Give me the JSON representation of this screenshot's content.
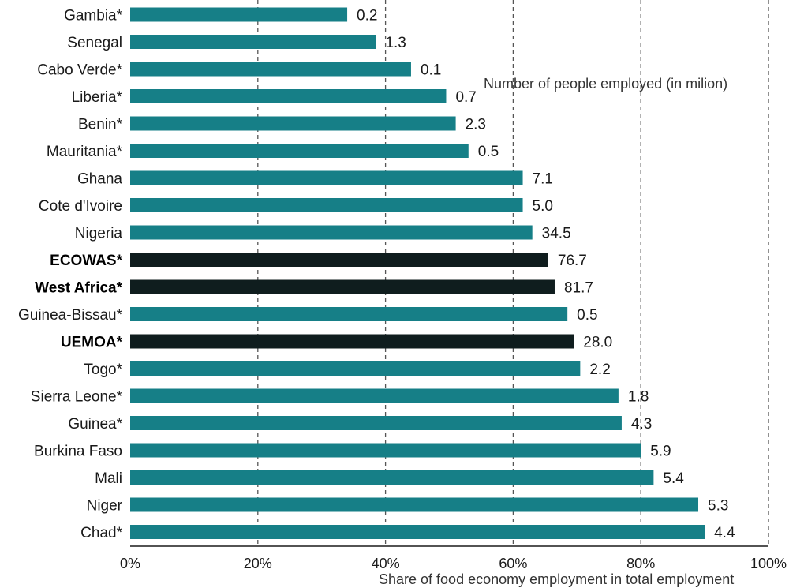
{
  "chart_data": {
    "type": "bar",
    "orientation": "horizontal",
    "categories": [
      "Gambia*",
      "Senegal",
      "Cabo Verde*",
      "Liberia*",
      "Benin*",
      "Mauritania*",
      "Ghana",
      "Cote d'Ivoire",
      "Nigeria",
      "ECOWAS*",
      "West Africa*",
      "Guinea-Bissau*",
      "UEMOA*",
      "Togo*",
      "Sierra Leone*",
      "Guinea*",
      "Burkina Faso",
      "Mali",
      "Niger",
      "Chad*"
    ],
    "values": [
      34,
      38.5,
      44,
      49.5,
      51,
      53,
      61.5,
      61.5,
      63,
      65.5,
      66.5,
      68.5,
      69.5,
      70.5,
      76.5,
      77,
      80,
      82,
      89,
      90
    ],
    "data_labels": [
      "0.2",
      "1.3",
      "0.1",
      "0.7",
      "2.3",
      "0.5",
      "7.1",
      "5.0",
      "34.5",
      "76.7",
      "81.7",
      "0.5",
      "28.0",
      "2.2",
      "1.8",
      "4.3",
      "5.9",
      "5.4",
      "5.3",
      "4.4"
    ],
    "highlight": [
      false,
      false,
      false,
      false,
      false,
      false,
      false,
      false,
      false,
      true,
      true,
      false,
      true,
      false,
      false,
      false,
      false,
      false,
      false,
      false
    ],
    "xlim": [
      0,
      100
    ],
    "xticks": [
      "0%",
      "20%",
      "40%",
      "60%",
      "80%",
      "100%"
    ],
    "xlabel": "Share of food economy employment in total employment",
    "annotation": "Number of people employed (in milion)",
    "grid": "vertical dashed",
    "colors": {
      "bar": "#167f87",
      "highlight_bar": "#0f1d1e",
      "grid": "#555555"
    }
  }
}
